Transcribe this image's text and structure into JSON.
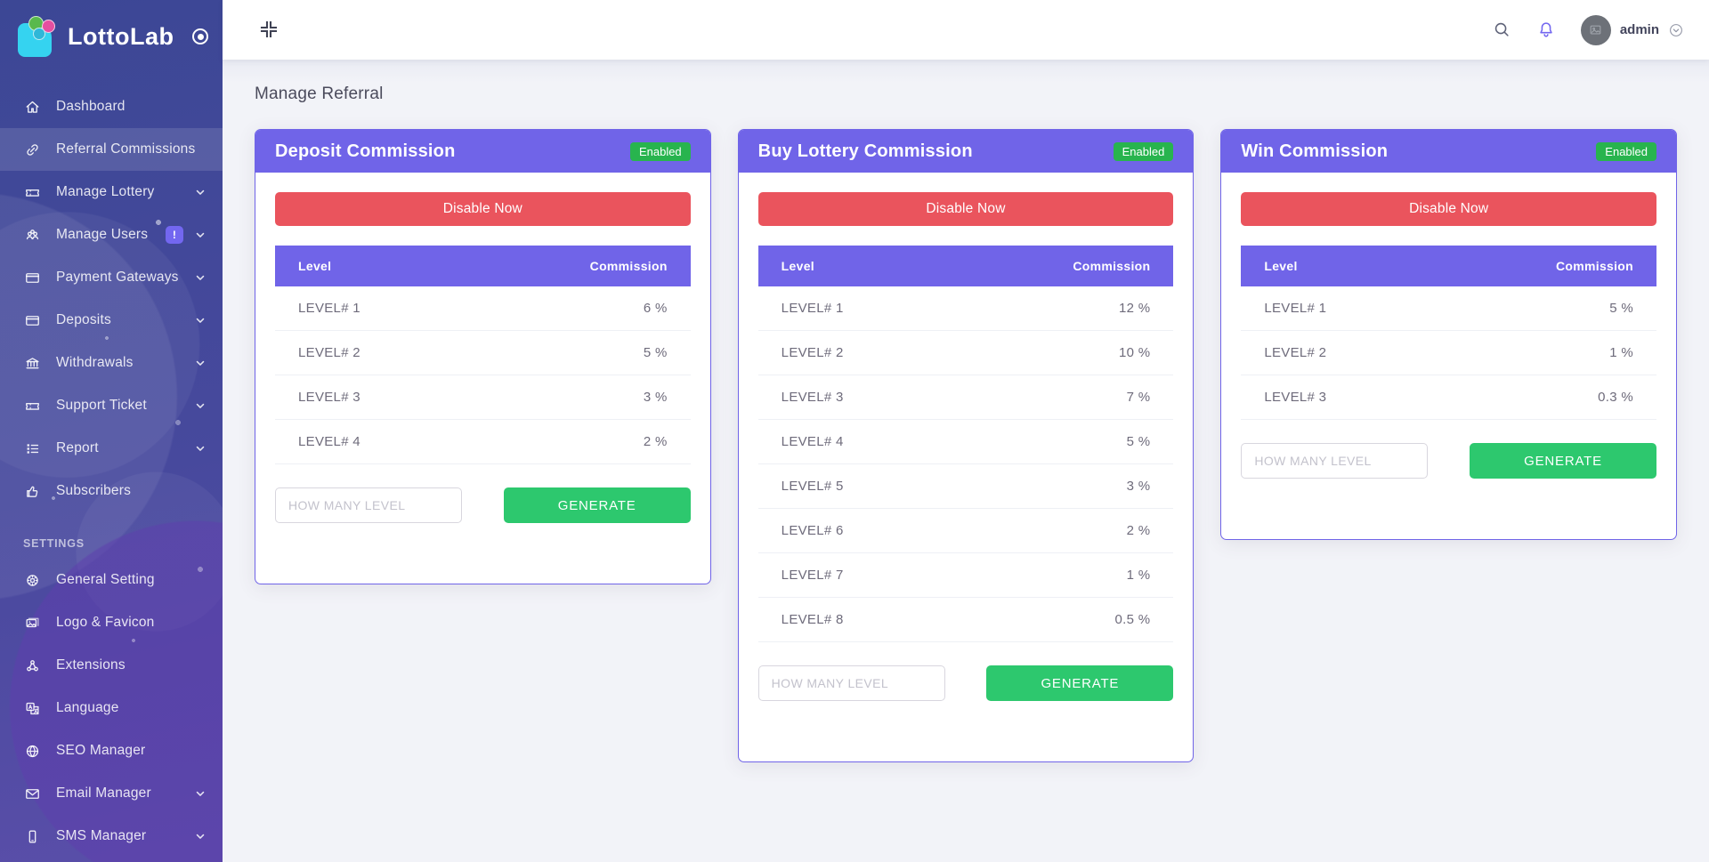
{
  "brand": {
    "name": "LottoLab"
  },
  "topbar": {
    "username": "admin"
  },
  "page": {
    "title": "Manage Referral"
  },
  "colors": {
    "accent": "#7064e8",
    "danger": "#ea545d",
    "status_green": "#28b44e",
    "generate_green": "#2dc86e",
    "sidebar_top": "#3c4795",
    "sidebar_bottom": "#5a4ea9"
  },
  "icons": [
    "home-icon",
    "link-icon",
    "ticket-icon",
    "users-icon",
    "credit-card-icon",
    "bank-icon",
    "list-icon",
    "thumbs-up-icon",
    "gear-icon",
    "image-icon",
    "nodes-icon",
    "language-icon",
    "globe-icon",
    "envelope-icon",
    "mobile-icon",
    "search-icon",
    "bell-icon",
    "compress-icon",
    "chevron-down-icon",
    "circle-dot-icon",
    "image-placeholder-icon"
  ],
  "sidebar": {
    "groups": [
      {
        "label": "",
        "items": [
          {
            "label": "Dashboard",
            "icon": "home-icon",
            "chevron": false,
            "badge": "",
            "active": false
          },
          {
            "label": "Referral Commissions",
            "icon": "link-icon",
            "chevron": false,
            "badge": "",
            "active": true
          },
          {
            "label": "Manage Lottery",
            "icon": "ticket-icon",
            "chevron": true,
            "badge": "",
            "active": false
          },
          {
            "label": "Manage Users",
            "icon": "users-icon",
            "chevron": true,
            "badge": "!",
            "active": false
          },
          {
            "label": "Payment Gateways",
            "icon": "credit-card-icon",
            "chevron": true,
            "badge": "",
            "active": false
          },
          {
            "label": "Deposits",
            "icon": "credit-card-icon",
            "chevron": true,
            "badge": "",
            "active": false
          },
          {
            "label": "Withdrawals",
            "icon": "bank-icon",
            "chevron": true,
            "badge": "",
            "active": false
          },
          {
            "label": "Support Ticket",
            "icon": "ticket-icon",
            "chevron": true,
            "badge": "",
            "active": false
          },
          {
            "label": "Report",
            "icon": "list-icon",
            "chevron": true,
            "badge": "",
            "active": false
          },
          {
            "label": "Subscribers",
            "icon": "thumbs-up-icon",
            "chevron": false,
            "badge": "",
            "active": false
          }
        ]
      },
      {
        "label": "SETTINGS",
        "items": [
          {
            "label": "General Setting",
            "icon": "gear-icon",
            "chevron": false,
            "badge": "",
            "active": false
          },
          {
            "label": "Logo & Favicon",
            "icon": "image-icon",
            "chevron": false,
            "badge": "",
            "active": false
          },
          {
            "label": "Extensions",
            "icon": "nodes-icon",
            "chevron": false,
            "badge": "",
            "active": false
          },
          {
            "label": "Language",
            "icon": "language-icon",
            "chevron": false,
            "badge": "",
            "active": false
          },
          {
            "label": "SEO Manager",
            "icon": "globe-icon",
            "chevron": false,
            "badge": "",
            "active": false
          },
          {
            "label": "Email Manager",
            "icon": "envelope-icon",
            "chevron": true,
            "badge": "",
            "active": false
          },
          {
            "label": "SMS Manager",
            "icon": "mobile-icon",
            "chevron": true,
            "badge": "",
            "active": false
          }
        ]
      }
    ]
  },
  "cards": [
    {
      "title": "Deposit Commission",
      "status": "Enabled",
      "disable_label": "Disable Now",
      "columns": [
        "Level",
        "Commission"
      ],
      "rows": [
        [
          "LEVEL# 1",
          "6 %"
        ],
        [
          "LEVEL# 2",
          "5 %"
        ],
        [
          "LEVEL# 3",
          "3 %"
        ],
        [
          "LEVEL# 4",
          "2 %"
        ]
      ],
      "input_placeholder": "HOW MANY LEVEL",
      "generate_label": "GENERATE"
    },
    {
      "title": "Buy Lottery Commission",
      "status": "Enabled",
      "disable_label": "Disable Now",
      "columns": [
        "Level",
        "Commission"
      ],
      "rows": [
        [
          "LEVEL# 1",
          "12 %"
        ],
        [
          "LEVEL# 2",
          "10 %"
        ],
        [
          "LEVEL# 3",
          "7 %"
        ],
        [
          "LEVEL# 4",
          "5 %"
        ],
        [
          "LEVEL# 5",
          "3 %"
        ],
        [
          "LEVEL# 6",
          "2 %"
        ],
        [
          "LEVEL# 7",
          "1 %"
        ],
        [
          "LEVEL# 8",
          "0.5 %"
        ]
      ],
      "input_placeholder": "HOW MANY LEVEL",
      "generate_label": "GENERATE"
    },
    {
      "title": "Win Commission",
      "status": "Enabled",
      "disable_label": "Disable Now",
      "columns": [
        "Level",
        "Commission"
      ],
      "rows": [
        [
          "LEVEL# 1",
          "5 %"
        ],
        [
          "LEVEL# 2",
          "1 %"
        ],
        [
          "LEVEL# 3",
          "0.3 %"
        ]
      ],
      "input_placeholder": "HOW MANY LEVEL",
      "generate_label": "GENERATE"
    }
  ]
}
